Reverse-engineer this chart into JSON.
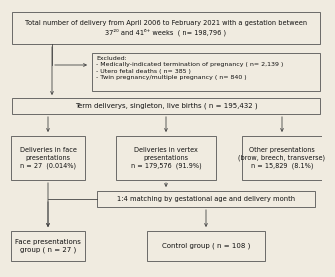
{
  "bg_color": "#f0ebe0",
  "box_color": "#f0ebe0",
  "box_edge_color": "#555555",
  "arrow_color": "#444444",
  "text_color": "#111111",
  "title_line1": "Total number of delivery from April 2006 to February 2021 with a gestation between",
  "title_line2": "37²⁰ and 41⁶⁺ weeks  ( n= 198,796 )",
  "excluded_title": "Excluded:",
  "excluded_items": [
    "- Medically-indicated termination of pregnancy ( n= 2,139 )",
    "- Utero fetal deaths ( n= 385 )",
    "- Twin pregnancy/multiple pregnancy ( n= 840 )"
  ],
  "term_text": "Term deliverys, singleton, live births ( n = 195,432 )",
  "face_text": "Deliveries in face\npresentations\nn = 27  (0.014%)",
  "vertex_text": "Deliveries in vertex\npresentations\nn = 179,576  (91.9%)",
  "other_text": "Other presentations\n(brow, breech, transverse)\nn = 15,829  (8.1%)",
  "matching_text": "1:4 matching by gestational age and delivery month",
  "face_group_text": "Face presentations\ngroup ( n = 27 )",
  "control_text": "Control group ( n = 108 )"
}
